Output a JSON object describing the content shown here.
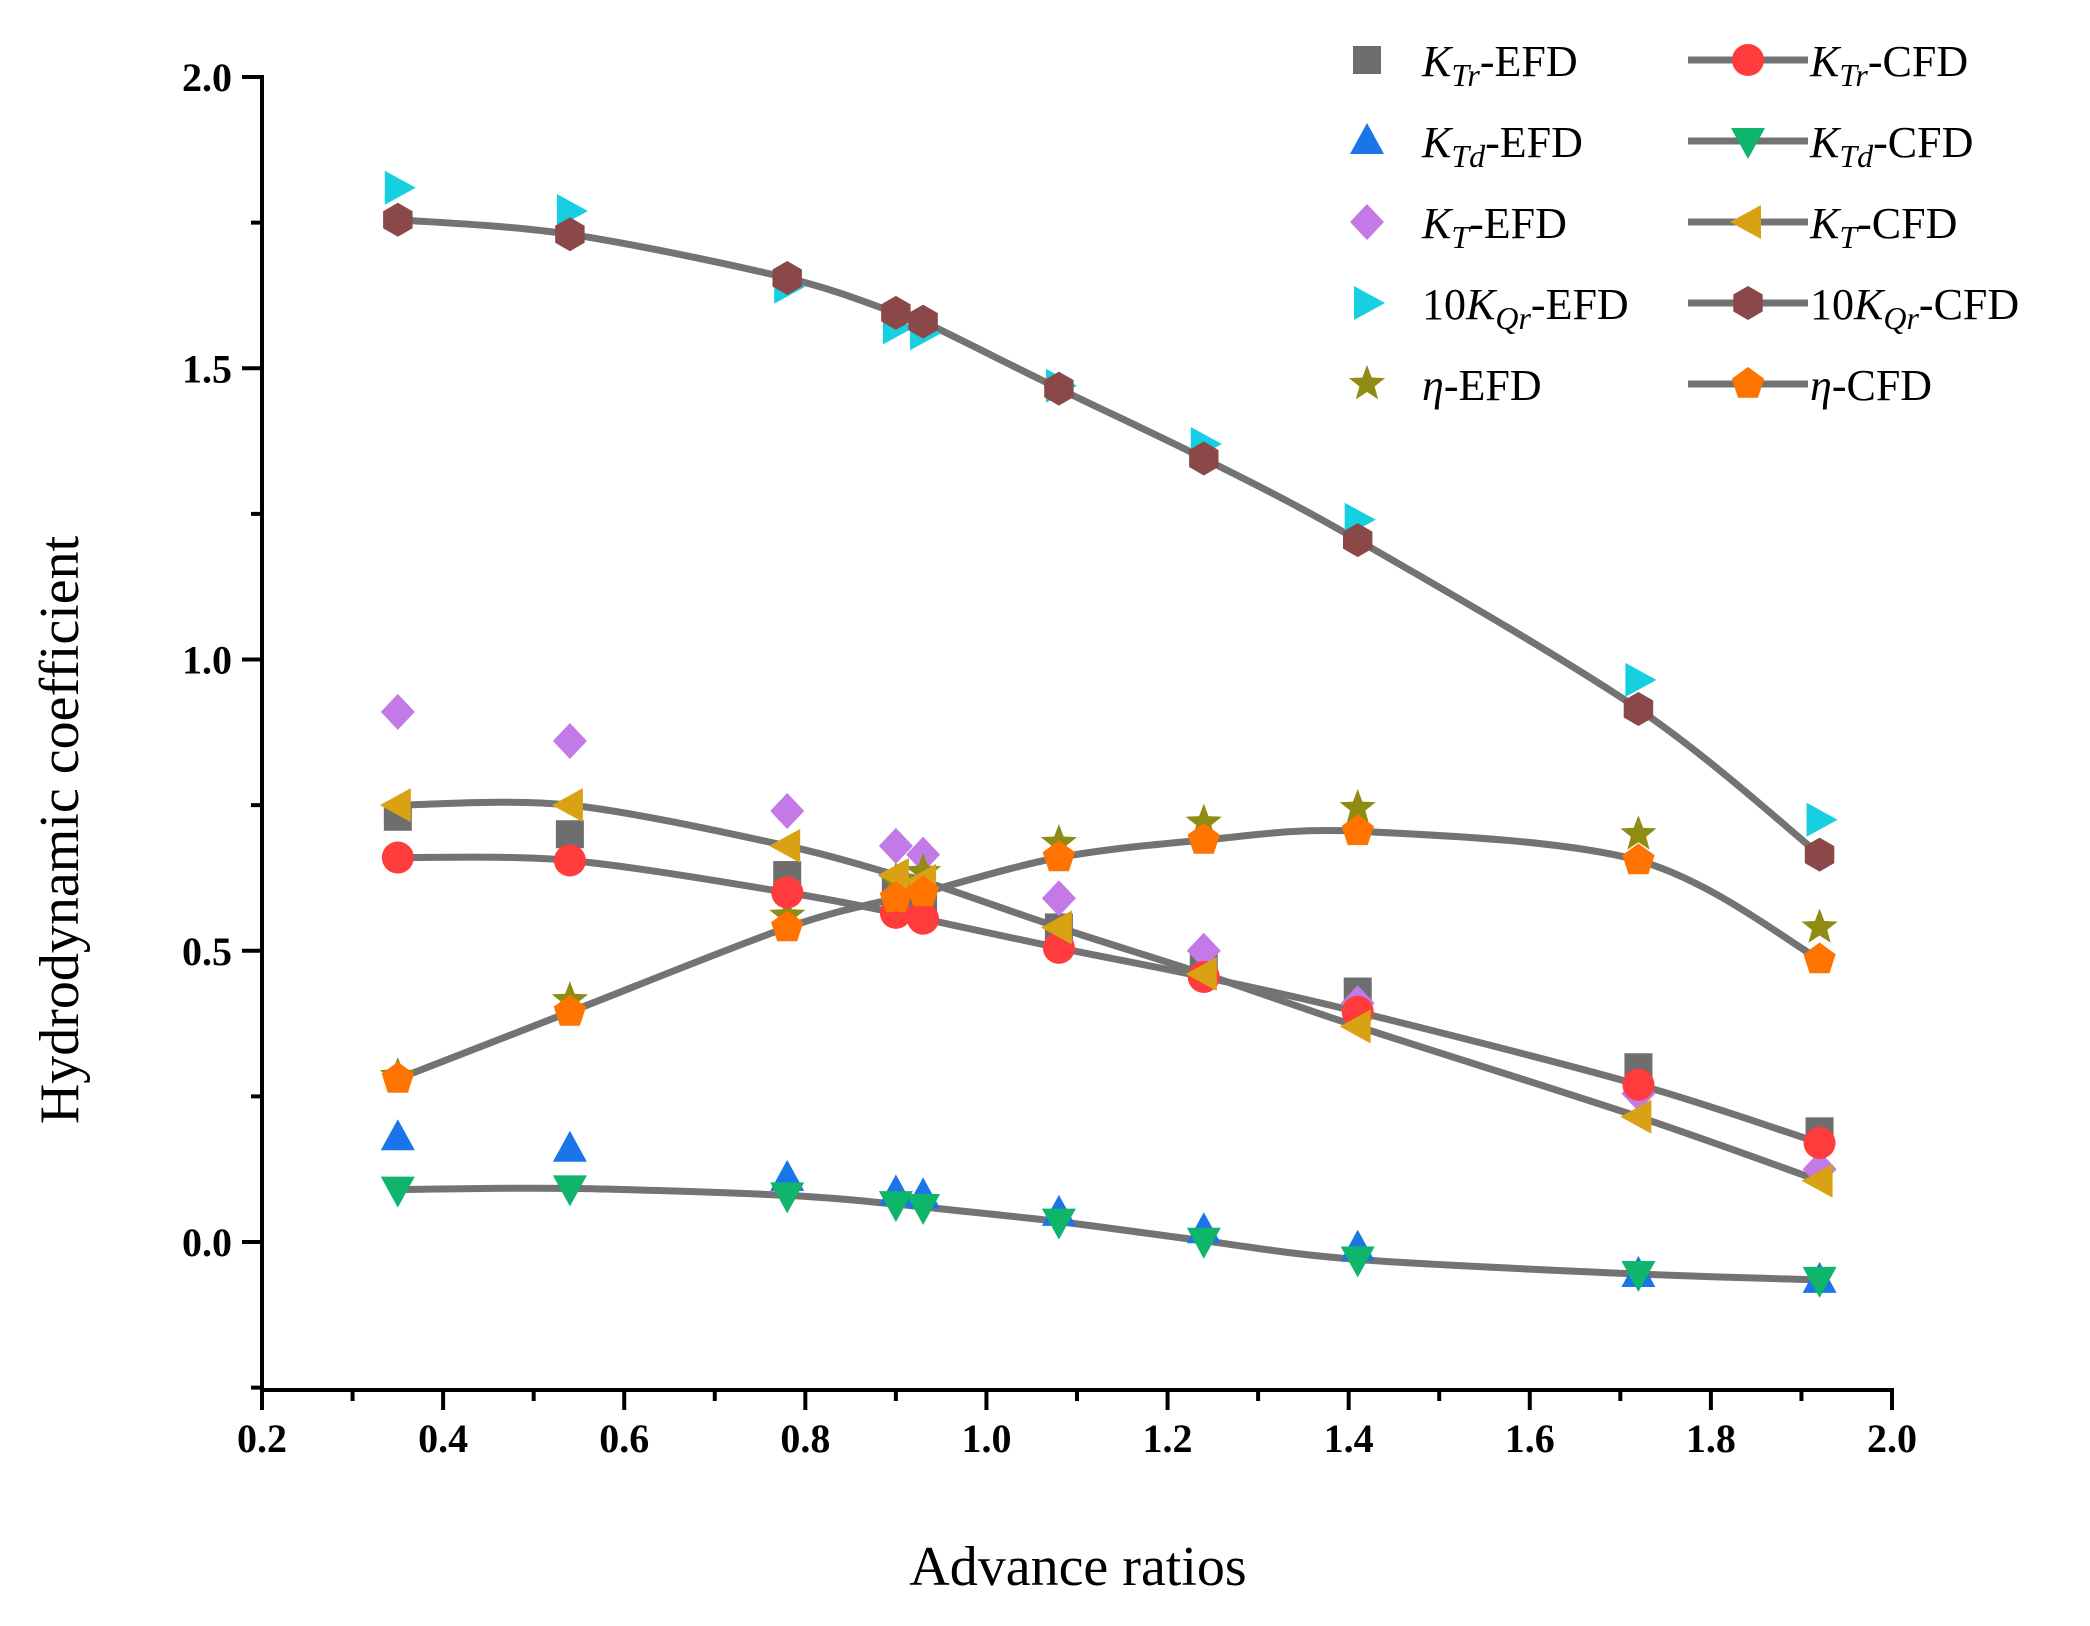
{
  "chart_data": {
    "type": "line",
    "xlabel": "Advance ratios",
    "ylabel": "Hydrodynamic coefficient",
    "xlim": [
      0.2,
      2.0
    ],
    "ylim": [
      -0.25,
      2.0
    ],
    "x_ticks": [
      "0.2",
      "0.4",
      "0.6",
      "0.8",
      "1.0",
      "1.2",
      "1.4",
      "1.6",
      "1.8",
      "2.0"
    ],
    "y_ticks": [
      "0.0",
      "0.5",
      "1.0",
      "1.5",
      "2.0"
    ],
    "grid": false,
    "legend_position": "top-right",
    "series": [
      {
        "name": "KTr-EFD",
        "legend": {
          "pre": "",
          "sym": "K",
          "sub": "Tr",
          "post": "-EFD"
        },
        "style": "marker",
        "marker": "square",
        "color": "#6e6e6e",
        "x": [
          0.35,
          0.54,
          0.78,
          0.9,
          0.93,
          1.08,
          1.24,
          1.41,
          1.72,
          1.92
        ],
        "y": [
          0.73,
          0.7,
          0.63,
          0.6,
          0.58,
          0.54,
          0.47,
          0.43,
          0.3,
          0.19
        ]
      },
      {
        "name": "KTr-CFD",
        "legend": {
          "pre": "",
          "sym": "K",
          "sub": "Tr",
          "post": "-CFD"
        },
        "style": "line",
        "marker": "circle",
        "color": "#ff3b3b",
        "x": [
          0.35,
          0.54,
          0.78,
          0.9,
          0.93,
          1.08,
          1.24,
          1.41,
          1.72,
          1.92
        ],
        "y": [
          0.66,
          0.655,
          0.6,
          0.565,
          0.555,
          0.505,
          0.455,
          0.395,
          0.27,
          0.17
        ]
      },
      {
        "name": "KTd-EFD",
        "legend": {
          "pre": "",
          "sym": "K",
          "sub": "Td",
          "post": "-EFD"
        },
        "style": "marker",
        "marker": "triangle-up",
        "color": "#1a75e8",
        "x": [
          0.35,
          0.54,
          0.78,
          0.9,
          0.93,
          1.08,
          1.24,
          1.41,
          1.72,
          1.92
        ],
        "y": [
          0.18,
          0.16,
          0.11,
          0.085,
          0.08,
          0.05,
          0.02,
          -0.01,
          -0.055,
          -0.065
        ]
      },
      {
        "name": "KTd-CFD",
        "legend": {
          "pre": "",
          "sym": "K",
          "sub": "Td",
          "post": "-CFD"
        },
        "style": "line",
        "marker": "triangle-down",
        "color": "#0fb56b",
        "x": [
          0.35,
          0.54,
          0.78,
          0.9,
          0.93,
          1.08,
          1.24,
          1.41,
          1.72,
          1.92
        ],
        "y": [
          0.09,
          0.092,
          0.08,
          0.065,
          0.06,
          0.035,
          0.002,
          -0.03,
          -0.055,
          -0.065
        ]
      },
      {
        "name": "KT-EFD",
        "legend": {
          "pre": "",
          "sym": "K",
          "sub": "T",
          "post": "-EFD"
        },
        "style": "marker",
        "marker": "diamond",
        "color": "#c379e6",
        "x": [
          0.35,
          0.54,
          0.78,
          0.9,
          0.93,
          1.08,
          1.24,
          1.41,
          1.72,
          1.92
        ],
        "y": [
          0.91,
          0.86,
          0.74,
          0.68,
          0.665,
          0.59,
          0.5,
          0.41,
          0.255,
          0.125
        ]
      },
      {
        "name": "KT-CFD",
        "legend": {
          "pre": "",
          "sym": "K",
          "sub": "T",
          "post": "-CFD"
        },
        "style": "line",
        "marker": "triangle-left",
        "color": "#d9a215",
        "x": [
          0.35,
          0.54,
          0.78,
          0.9,
          0.93,
          1.08,
          1.24,
          1.41,
          1.72,
          1.92
        ],
        "y": [
          0.75,
          0.75,
          0.68,
          0.63,
          0.62,
          0.54,
          0.46,
          0.37,
          0.215,
          0.105
        ]
      },
      {
        "name": "10KQr-EFD",
        "legend": {
          "pre": "10",
          "sym": "K",
          "sub": "Qr",
          "post": "-EFD"
        },
        "style": "marker",
        "marker": "triangle-right",
        "color": "#16cfe0",
        "x": [
          0.35,
          0.54,
          0.78,
          0.9,
          0.93,
          1.08,
          1.24,
          1.41,
          1.72,
          1.92
        ],
        "y": [
          1.81,
          1.77,
          1.64,
          1.57,
          1.56,
          1.47,
          1.37,
          1.24,
          0.965,
          0.725
        ]
      },
      {
        "name": "10KQr-CFD",
        "legend": {
          "pre": "10",
          "sym": "K",
          "sub": "Qr",
          "post": "-CFD"
        },
        "style": "line",
        "marker": "hexagon",
        "color": "#8b4848",
        "x": [
          0.35,
          0.54,
          0.78,
          0.9,
          0.93,
          1.08,
          1.24,
          1.41,
          1.72,
          1.92
        ],
        "y": [
          1.755,
          1.73,
          1.655,
          1.595,
          1.58,
          1.465,
          1.345,
          1.205,
          0.915,
          0.665
        ]
      },
      {
        "name": "η-EFD",
        "legend": {
          "pre": "",
          "sym": "η",
          "sub": "",
          "post": "-EFD"
        },
        "style": "marker",
        "marker": "star",
        "color": "#8e8c12",
        "x": [
          0.35,
          0.54,
          0.78,
          0.9,
          0.93,
          1.08,
          1.24,
          1.41,
          1.72,
          1.92
        ],
        "y": [
          0.285,
          0.415,
          0.56,
          0.62,
          0.635,
          0.685,
          0.72,
          0.745,
          0.7,
          0.54
        ]
      },
      {
        "name": "η-CFD",
        "legend": {
          "pre": "",
          "sym": "η",
          "sub": "",
          "post": "-CFD"
        },
        "style": "line",
        "marker": "pentagon",
        "color": "#ff7300",
        "x": [
          0.35,
          0.54,
          0.78,
          0.9,
          0.93,
          1.08,
          1.24,
          1.41,
          1.72,
          1.92
        ],
        "y": [
          0.28,
          0.395,
          0.54,
          0.59,
          0.6,
          0.66,
          0.69,
          0.705,
          0.655,
          0.485
        ]
      }
    ]
  }
}
